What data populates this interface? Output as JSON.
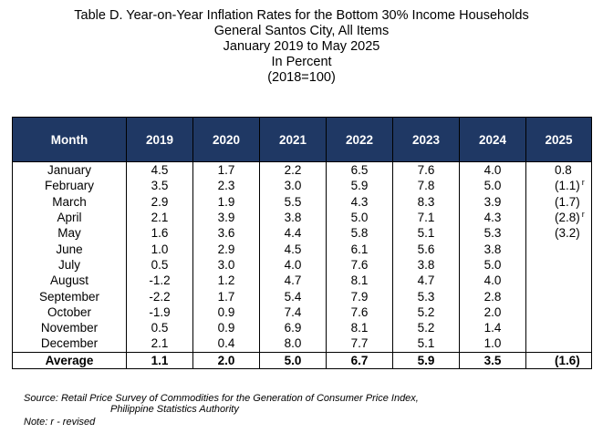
{
  "title": {
    "lines": [
      "Table D. Year-on-Year Inflation Rates for the Bottom 30% Income Households",
      "General Santos City, All Items",
      "January 2019 to May 2025",
      "In Percent",
      "(2018=100)"
    ]
  },
  "table": {
    "headers": [
      "Month",
      "2019",
      "2020",
      "2021",
      "2022",
      "2023",
      "2024",
      "2025"
    ],
    "rows": [
      {
        "month": "January",
        "v": [
          "4.5",
          "1.7",
          "2.2",
          "6.5",
          "7.6",
          "4.0",
          "0.8"
        ],
        "revised": false
      },
      {
        "month": "February",
        "v": [
          "3.5",
          "2.3",
          "3.0",
          "5.9",
          "7.8",
          "5.0",
          "(1.1)"
        ],
        "revised": true
      },
      {
        "month": "March",
        "v": [
          "2.9",
          "1.9",
          "5.5",
          "4.3",
          "8.3",
          "3.9",
          "(1.7)"
        ],
        "revised": false
      },
      {
        "month": "April",
        "v": [
          "2.1",
          "3.9",
          "3.8",
          "5.0",
          "7.1",
          "4.3",
          "(2.8)"
        ],
        "revised": true
      },
      {
        "month": "May",
        "v": [
          "1.6",
          "3.6",
          "4.4",
          "5.8",
          "5.1",
          "5.3",
          "(3.2)"
        ],
        "revised": false
      },
      {
        "month": "June",
        "v": [
          "1.0",
          "2.9",
          "4.5",
          "6.1",
          "5.6",
          "3.8",
          ""
        ],
        "revised": false
      },
      {
        "month": "July",
        "v": [
          "0.5",
          "3.0",
          "4.0",
          "7.6",
          "3.8",
          "5.0",
          ""
        ],
        "revised": false
      },
      {
        "month": "August",
        "v": [
          "-1.2",
          "1.2",
          "4.7",
          "8.1",
          "4.7",
          "4.0",
          ""
        ],
        "revised": false
      },
      {
        "month": "September",
        "v": [
          "-2.2",
          "1.7",
          "5.4",
          "7.9",
          "5.3",
          "2.8",
          ""
        ],
        "revised": false
      },
      {
        "month": "October",
        "v": [
          "-1.9",
          "0.9",
          "7.4",
          "7.6",
          "5.2",
          "2.0",
          ""
        ],
        "revised": false
      },
      {
        "month": "November",
        "v": [
          "0.5",
          "0.9",
          "6.9",
          "8.1",
          "5.2",
          "1.4",
          ""
        ],
        "revised": false
      },
      {
        "month": "December",
        "v": [
          "2.1",
          "0.4",
          "8.0",
          "7.7",
          "5.1",
          "1.0",
          ""
        ],
        "revised": false
      }
    ],
    "average": {
      "label": "Average",
      "v": [
        "1.1",
        "2.0",
        "5.0",
        "6.7",
        "5.9",
        "3.5",
        "(1.6)"
      ]
    },
    "revised_mark": "r",
    "header_color": "#1f3864"
  },
  "footer": {
    "source_line1": "Source: Retail Price Survey of Commodities for the Generation of Consumer Price Index,",
    "source_line2": "Philippine Statistics Authority",
    "note": "Note: r - revised"
  }
}
